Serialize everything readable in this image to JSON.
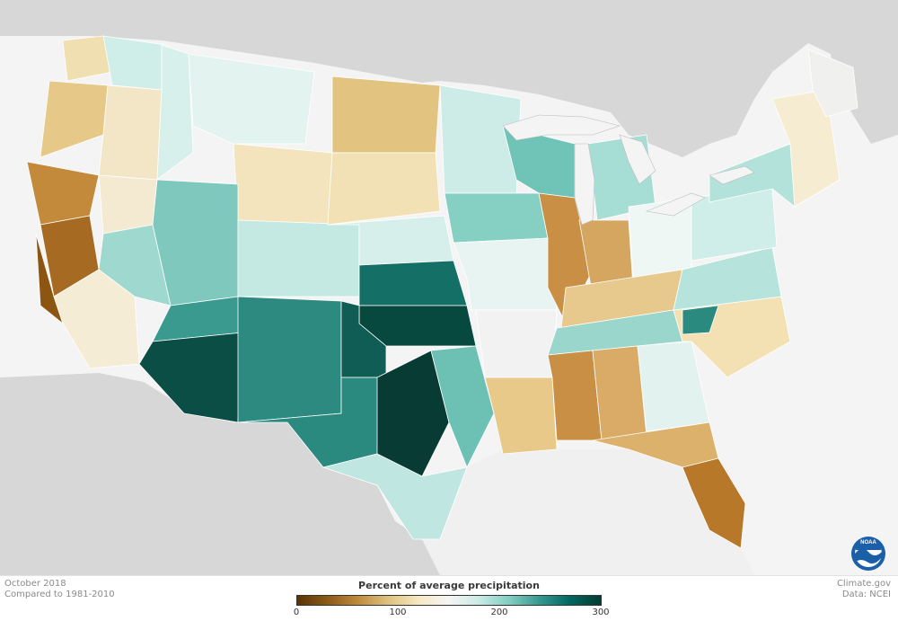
{
  "legend": {
    "title": "Percent of average precipitation",
    "ticks": [
      "0",
      "100",
      "200",
      "300"
    ],
    "colors": [
      "#5a3304",
      "#8c5a17",
      "#bf8a3c",
      "#dfc27d",
      "#f6e8c3",
      "#f5f5f5",
      "#c7eae5",
      "#80cdc1",
      "#35978f",
      "#01665e",
      "#003c30"
    ]
  },
  "footer": {
    "date_line": "October 2018",
    "baseline_line": "Compared to 1981-2010",
    "source_line": "Climate.gov",
    "data_line": "Data: NCEI"
  },
  "logo": {
    "name": "noaa-logo",
    "text": "NOAA"
  },
  "palette": {
    "land_outside": "#d7d7d7",
    "ocean": "#f4f4f4",
    "borders": "#9a9a9a"
  },
  "regions": [
    {
      "name": "washington-west",
      "color": "#f0dfb0"
    },
    {
      "name": "washington-east",
      "color": "#cfeee9"
    },
    {
      "name": "oregon-coast",
      "color": "#e6c889"
    },
    {
      "name": "oregon-east",
      "color": "#f3e6c6"
    },
    {
      "name": "california-north",
      "color": "#c48a3c"
    },
    {
      "name": "california-central",
      "color": "#a76a22"
    },
    {
      "name": "california-coast-south",
      "color": "#8c5511"
    },
    {
      "name": "california-south",
      "color": "#f5ecd6"
    },
    {
      "name": "nevada",
      "color": "#f4ead1"
    },
    {
      "name": "nevada-south",
      "color": "#9fd8cf"
    },
    {
      "name": "idaho",
      "color": "#d8f0ec"
    },
    {
      "name": "montana",
      "color": "#e3f3f0"
    },
    {
      "name": "wyoming",
      "color": "#f3e4bd"
    },
    {
      "name": "utah",
      "color": "#7fc8bd"
    },
    {
      "name": "colorado",
      "color": "#c4e9e3"
    },
    {
      "name": "arizona-north",
      "color": "#3a9a90"
    },
    {
      "name": "arizona-south",
      "color": "#0a4e45"
    },
    {
      "name": "new-mexico",
      "color": "#2c8a80"
    },
    {
      "name": "north-dakota",
      "color": "#e2c380"
    },
    {
      "name": "south-dakota",
      "color": "#f2e1b4"
    },
    {
      "name": "nebraska",
      "color": "#d7efeb"
    },
    {
      "name": "kansas",
      "color": "#147066"
    },
    {
      "name": "oklahoma",
      "color": "#08493f"
    },
    {
      "name": "texas-panhandle",
      "color": "#0f5d55"
    },
    {
      "name": "texas-west",
      "color": "#2b8a80"
    },
    {
      "name": "texas-central",
      "color": "#083b33"
    },
    {
      "name": "texas-east",
      "color": "#6cc0b4"
    },
    {
      "name": "texas-south",
      "color": "#bfe6e0"
    },
    {
      "name": "minnesota",
      "color": "#cdece7"
    },
    {
      "name": "iowa",
      "color": "#86cfc3"
    },
    {
      "name": "missouri",
      "color": "#e8f4f2"
    },
    {
      "name": "arkansas",
      "color": "#f2f2f2"
    },
    {
      "name": "louisiana",
      "color": "#e9c98a"
    },
    {
      "name": "wisconsin",
      "color": "#6fc3b7"
    },
    {
      "name": "michigan",
      "color": "#a6ddd4"
    },
    {
      "name": "illinois",
      "color": "#c98f44"
    },
    {
      "name": "indiana",
      "color": "#d5a660"
    },
    {
      "name": "ohio",
      "color": "#eff7f5"
    },
    {
      "name": "kentucky",
      "color": "#e7c98e"
    },
    {
      "name": "tennessee",
      "color": "#9bd6cc"
    },
    {
      "name": "mississippi",
      "color": "#c98f44"
    },
    {
      "name": "alabama",
      "color": "#d9ab67"
    },
    {
      "name": "georgia",
      "color": "#e1f2ef"
    },
    {
      "name": "florida-north",
      "color": "#dcb16b"
    },
    {
      "name": "florida-peninsula",
      "color": "#b8782a"
    },
    {
      "name": "carolinas",
      "color": "#f3e1b3"
    },
    {
      "name": "virginia",
      "color": "#b6e3dc"
    },
    {
      "name": "west-virginia",
      "color": "#2b8a80"
    },
    {
      "name": "pennsylvania",
      "color": "#cfeeea"
    },
    {
      "name": "new-york",
      "color": "#b2e2da"
    },
    {
      "name": "new-england",
      "color": "#f5ecd2"
    },
    {
      "name": "maine",
      "color": "#f0f0ee"
    }
  ]
}
